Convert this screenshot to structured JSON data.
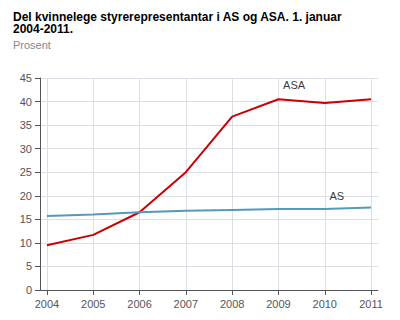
{
  "chart_data": {
    "type": "line",
    "title": "Del kvinnelege styrerepresentantar i AS og ASA. 1. januar 2004-2011.",
    "subtitle": "Prosent",
    "x": [
      2004,
      2005,
      2006,
      2007,
      2008,
      2009,
      2010,
      2011
    ],
    "series": [
      {
        "name": "ASA",
        "color": "#cc0000",
        "values": [
          9.5,
          11.7,
          16.5,
          25.0,
          36.8,
          40.5,
          39.7,
          40.5
        ]
      },
      {
        "name": "AS",
        "color": "#5599bb",
        "values": [
          15.7,
          16.0,
          16.5,
          16.8,
          17.0,
          17.2,
          17.2,
          17.5
        ]
      }
    ],
    "annotations": [
      {
        "text": "ASA",
        "x": 2009.1,
        "y": 41.8
      },
      {
        "text": "AS",
        "x": 2010.1,
        "y": 18.3
      }
    ],
    "xlim": [
      2003.85,
      2011.15
    ],
    "xticks": [
      2004,
      2005,
      2006,
      2007,
      2008,
      2009,
      2010,
      2011
    ],
    "ylim": [
      0,
      45
    ],
    "yticks": [
      0,
      5,
      10,
      15,
      20,
      25,
      30,
      35,
      40,
      45
    ],
    "grid": true
  }
}
